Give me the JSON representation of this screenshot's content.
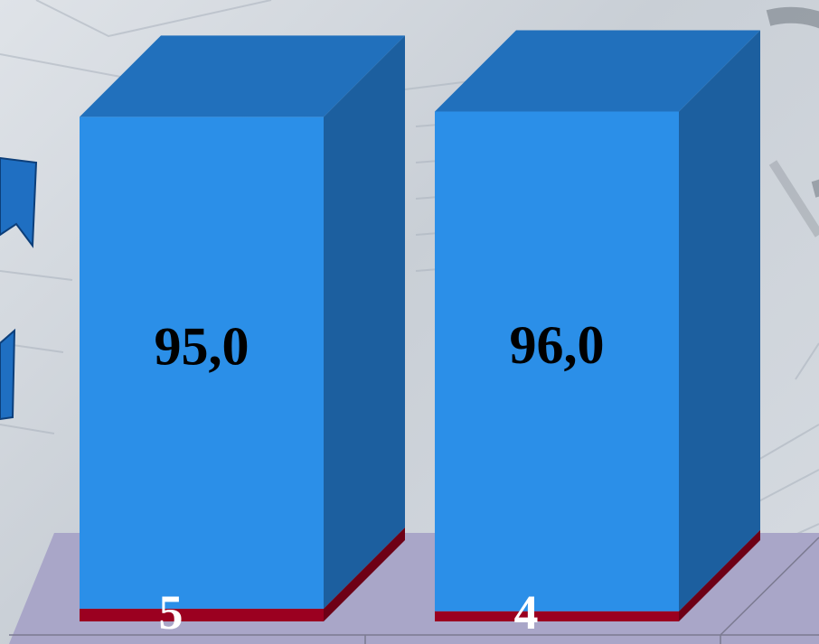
{
  "chart_data": {
    "type": "bar",
    "stacked": true,
    "style": "3d",
    "categories": [
      "",
      ""
    ],
    "series": [
      {
        "values": [
          5,
          4
        ],
        "color": "#9b0020"
      },
      {
        "values": [
          95.0,
          96.0
        ],
        "color": "#2b8fe8"
      }
    ],
    "data_labels": {
      "bottom": [
        "5",
        "4"
      ],
      "top": [
        "95,0",
        "96,0"
      ]
    },
    "ylim": [
      0,
      100
    ],
    "colors": {
      "bar_front": "#2b8fe8",
      "bar_side": "#1c5f9f",
      "bar_top": "#2170bc",
      "base_front": "#9b0020",
      "base_side": "#6e0016",
      "floor": "#a9a6c8"
    }
  }
}
